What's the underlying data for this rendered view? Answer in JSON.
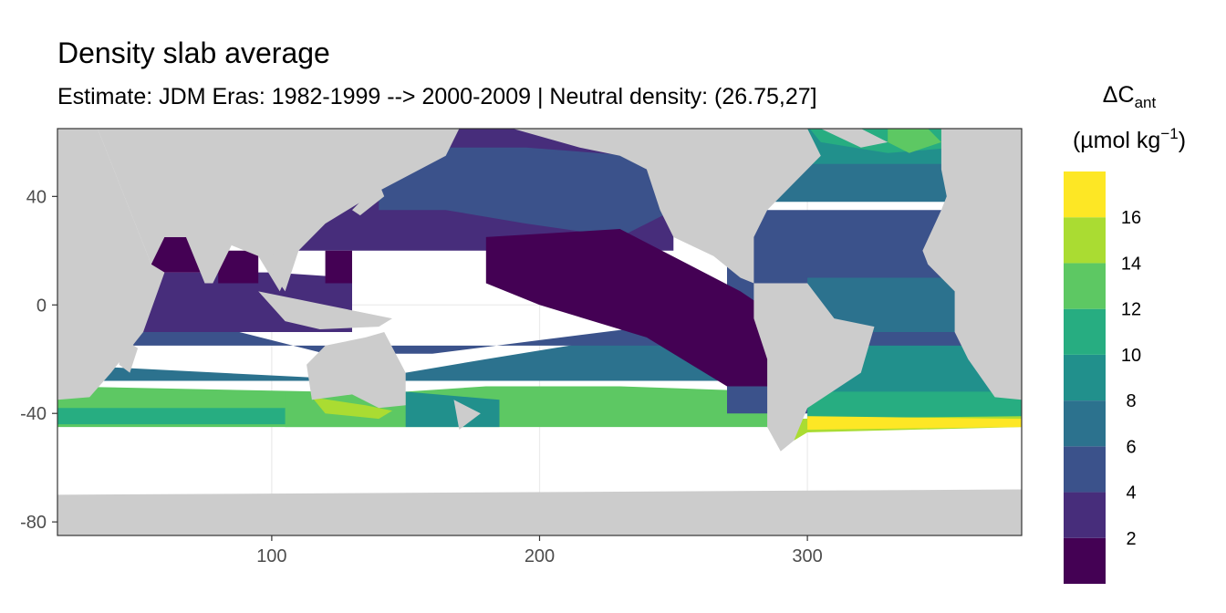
{
  "chart_data": {
    "type": "heatmap",
    "title": "Density slab average",
    "subtitle": "Estimate: JDM Eras: 1982-1999 --> 2000-2009 | Neutral density: (26.75,27]",
    "xlim": [
      20,
      380
    ],
    "ylim": [
      -85,
      65
    ],
    "x_ticks": [
      "100",
      "200",
      "300"
    ],
    "y_ticks": [
      "40",
      "0",
      "-40",
      "-80"
    ],
    "x_tick_values": [
      100,
      200,
      300
    ],
    "y_tick_values": [
      40,
      0,
      -40,
      -80
    ],
    "grid": true,
    "legend": {
      "position": "right",
      "title_main": "ΔC",
      "title_sub": "ant",
      "unit_main": "(µmol kg",
      "unit_sup": "−1",
      "unit_close": ")",
      "breaks": [
        "2",
        "4",
        "6",
        "8",
        "10",
        "12",
        "14",
        "16"
      ],
      "break_values": [
        2,
        4,
        6,
        8,
        10,
        12,
        14,
        16
      ],
      "range": [
        0,
        18
      ],
      "colors": [
        "#440154",
        "#472D7B",
        "#3B528B",
        "#2C728E",
        "#21908C",
        "#27AD81",
        "#5DC863",
        "#AADC32",
        "#FDE725"
      ]
    },
    "colors": {
      "land": "#CCCCCC",
      "no_data": "#FFFFFF",
      "panel_border": "#333333",
      "grid": "#EBEBEB"
    }
  }
}
